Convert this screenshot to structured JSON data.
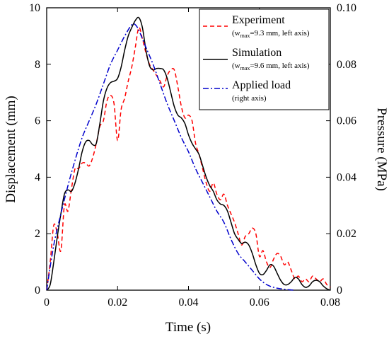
{
  "chart_data": {
    "type": "line",
    "title": "",
    "xlabel": "Time (s)",
    "ylabel": "Displacement (mm)",
    "y2label": "Pressure (MPa)",
    "xlim": [
      0,
      0.08
    ],
    "ylim": [
      0,
      10
    ],
    "y2lim": [
      0,
      0.1
    ],
    "xticks": [
      "0",
      "0.02",
      "0.04",
      "0.06",
      "0.08"
    ],
    "yticks": [
      "0",
      "2",
      "4",
      "6",
      "8",
      "10"
    ],
    "y2ticks": [
      "0",
      "0.02",
      "0.04",
      "0.06",
      "0.08",
      "0.10"
    ],
    "grid": false,
    "legend_position": "top-right",
    "legend": [
      {
        "name": "Experiment",
        "note_prefix": "(w",
        "note_sub": "max",
        "note_suffix": "=9.3 mm, left axis)",
        "color": "#ff0000",
        "dash": "dashed"
      },
      {
        "name": "Simulation",
        "note_prefix": "(w",
        "note_sub": "max",
        "note_suffix": "=9.6 mm, left axis)",
        "color": "#000000",
        "dash": "solid"
      },
      {
        "name": "Applied load",
        "note_prefix": "(right axis)",
        "note_sub": "",
        "note_suffix": "",
        "color": "#0000cc",
        "dash": "dash-dot"
      }
    ],
    "series": [
      {
        "name": "Experiment",
        "axis": "left",
        "color": "#ff0000",
        "x": [
          0,
          0.001,
          0.002,
          0.003,
          0.004,
          0.005,
          0.006,
          0.007,
          0.008,
          0.009,
          0.01,
          0.011,
          0.012,
          0.013,
          0.014,
          0.015,
          0.016,
          0.017,
          0.018,
          0.019,
          0.02,
          0.021,
          0.022,
          0.023,
          0.024,
          0.025,
          0.026,
          0.027,
          0.028,
          0.029,
          0.03,
          0.031,
          0.032,
          0.033,
          0.034,
          0.035,
          0.036,
          0.037,
          0.038,
          0.039,
          0.04,
          0.041,
          0.042,
          0.043,
          0.044,
          0.045,
          0.046,
          0.047,
          0.048,
          0.049,
          0.05,
          0.051,
          0.052,
          0.053,
          0.054,
          0.055,
          0.056,
          0.057,
          0.058,
          0.059,
          0.06,
          0.061,
          0.062,
          0.063,
          0.064,
          0.065,
          0.066,
          0.067,
          0.068,
          0.069,
          0.07,
          0.071,
          0.072,
          0.073,
          0.074,
          0.075,
          0.076,
          0.077,
          0.078,
          0.079,
          0.08
        ],
        "y": [
          0,
          1.0,
          2.3,
          2.0,
          1.4,
          3.0,
          2.8,
          3.6,
          4.3,
          4.3,
          4.5,
          4.5,
          4.4,
          4.7,
          5.2,
          5.8,
          6.0,
          6.7,
          6.9,
          6.6,
          5.3,
          6.4,
          6.8,
          7.4,
          7.9,
          8.6,
          9.3,
          8.9,
          8.4,
          8.0,
          7.8,
          7.6,
          7.4,
          7.2,
          7.6,
          7.8,
          7.8,
          7.2,
          6.5,
          6.1,
          6.2,
          6.0,
          5.2,
          4.8,
          4.3,
          3.8,
          3.5,
          3.8,
          3.4,
          3.2,
          3.4,
          3.0,
          2.7,
          2.4,
          2.0,
          1.6,
          1.9,
          2.0,
          2.2,
          2.0,
          1.2,
          1.4,
          1.0,
          0.8,
          1.1,
          1.3,
          1.2,
          0.9,
          1.0,
          0.7,
          0.4,
          0.5,
          0.3,
          0.4,
          0.3,
          0.5,
          0.4,
          0.3,
          0.4,
          0.2,
          0.1
        ]
      },
      {
        "name": "Simulation",
        "axis": "left",
        "color": "#000000",
        "x": [
          0,
          0.001,
          0.002,
          0.003,
          0.004,
          0.005,
          0.006,
          0.007,
          0.008,
          0.009,
          0.01,
          0.011,
          0.012,
          0.013,
          0.014,
          0.015,
          0.016,
          0.017,
          0.018,
          0.019,
          0.02,
          0.021,
          0.022,
          0.023,
          0.024,
          0.025,
          0.026,
          0.027,
          0.028,
          0.029,
          0.03,
          0.031,
          0.032,
          0.033,
          0.034,
          0.035,
          0.036,
          0.037,
          0.038,
          0.039,
          0.04,
          0.041,
          0.042,
          0.043,
          0.044,
          0.045,
          0.046,
          0.047,
          0.048,
          0.049,
          0.05,
          0.051,
          0.052,
          0.053,
          0.054,
          0.055,
          0.056,
          0.057,
          0.058,
          0.059,
          0.06,
          0.061,
          0.062,
          0.063,
          0.064,
          0.065,
          0.066,
          0.067,
          0.068,
          0.069,
          0.07,
          0.071,
          0.072,
          0.073,
          0.074,
          0.075,
          0.076,
          0.077,
          0.078,
          0.079,
          0.08
        ],
        "y": [
          0,
          0.2,
          1.0,
          1.9,
          2.7,
          3.4,
          3.55,
          3.5,
          3.8,
          4.3,
          4.9,
          5.25,
          5.3,
          5.15,
          5.2,
          5.9,
          6.7,
          7.15,
          7.35,
          7.4,
          7.5,
          7.9,
          8.5,
          9.0,
          9.3,
          9.55,
          9.65,
          9.3,
          8.5,
          7.95,
          7.8,
          7.85,
          7.85,
          7.8,
          7.5,
          7.0,
          6.5,
          6.2,
          6.1,
          5.9,
          5.5,
          5.2,
          5.0,
          4.8,
          4.4,
          4.0,
          3.7,
          3.5,
          3.2,
          3.05,
          3.0,
          2.8,
          2.4,
          2.0,
          1.8,
          1.65,
          1.7,
          1.6,
          1.3,
          0.9,
          0.6,
          0.55,
          0.7,
          0.9,
          0.85,
          0.6,
          0.35,
          0.2,
          0.2,
          0.3,
          0.45,
          0.4,
          0.2,
          0.1,
          0.15,
          0.3,
          0.35,
          0.3,
          0.15,
          0.05,
          0.0
        ]
      },
      {
        "name": "Applied load",
        "axis": "right",
        "color": "#0000cc",
        "x": [
          0,
          0.002,
          0.004,
          0.006,
          0.008,
          0.01,
          0.012,
          0.014,
          0.016,
          0.018,
          0.02,
          0.022,
          0.024,
          0.025,
          0.026,
          0.028,
          0.03,
          0.032,
          0.034,
          0.036,
          0.038,
          0.04,
          0.042,
          0.044,
          0.046,
          0.048,
          0.05,
          0.052,
          0.054,
          0.056,
          0.058,
          0.06,
          0.062,
          0.064,
          0.066,
          0.068,
          0.07
        ],
        "y": [
          0,
          0.016,
          0.027,
          0.037,
          0.046,
          0.054,
          0.06,
          0.066,
          0.073,
          0.08,
          0.085,
          0.09,
          0.094,
          0.094,
          0.092,
          0.086,
          0.08,
          0.073,
          0.066,
          0.06,
          0.054,
          0.049,
          0.043,
          0.038,
          0.033,
          0.028,
          0.024,
          0.018,
          0.013,
          0.01,
          0.007,
          0.004,
          0.002,
          0.001,
          0.0005,
          0.0002,
          0.0
        ]
      }
    ]
  }
}
